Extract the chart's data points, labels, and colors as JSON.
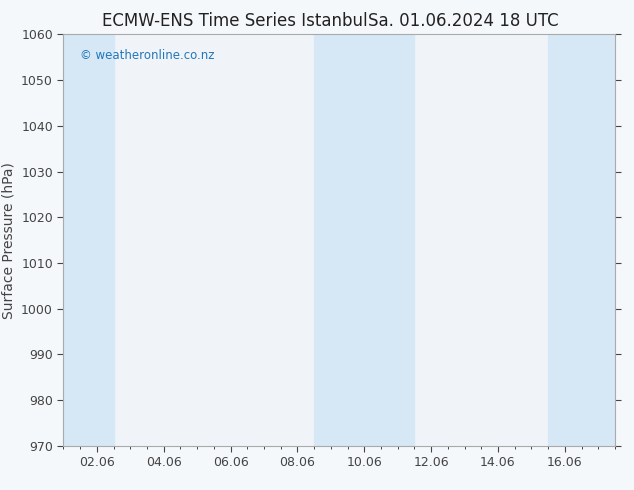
{
  "title_left": "ECMW-ENS Time Series Istanbul",
  "title_right": "Sa. 01.06.2024 18 UTC",
  "ylabel": "Surface Pressure (hPa)",
  "ylim": [
    970,
    1060
  ],
  "yticks": [
    970,
    980,
    990,
    1000,
    1010,
    1020,
    1030,
    1040,
    1050,
    1060
  ],
  "xtick_labels": [
    "02.06",
    "04.06",
    "06.06",
    "08.06",
    "10.06",
    "12.06",
    "14.06",
    "16.06"
  ],
  "xtick_positions": [
    1,
    3,
    5,
    7,
    9,
    11,
    13,
    15
  ],
  "xlim": [
    0,
    16.5
  ],
  "background_color": "#f5f8fb",
  "plot_bg_color": "#f0f4f8",
  "shaded_bands": [
    {
      "x_start": 0,
      "x_end": 1.5,
      "color": "#d6e8f5"
    },
    {
      "x_start": 7.5,
      "x_end": 9.5,
      "color": "#d6e8f5"
    },
    {
      "x_start": 9.5,
      "x_end": 10.5,
      "color": "#d6e8f5"
    },
    {
      "x_start": 14.5,
      "x_end": 16.5,
      "color": "#d6e8f5"
    }
  ],
  "watermark_text": " weatheronline.co.nz",
  "watermark_color": "#2277bb",
  "title_fontsize": 12,
  "tick_fontsize": 9,
  "ylabel_fontsize": 10,
  "border_color": "#aaaaaa",
  "tick_color": "#444444",
  "title_color": "#222222"
}
